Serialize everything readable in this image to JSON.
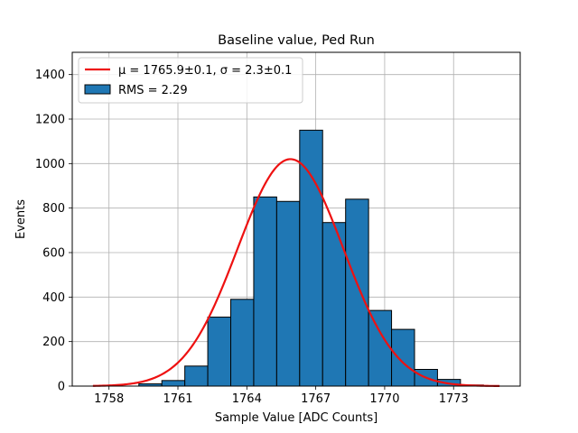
{
  "chart_data": {
    "type": "bar",
    "title": "Baseline value, Ped Run",
    "xlabel": "Sample Value [ADC Counts]",
    "ylabel": "Events",
    "xlim": [
      1756.4,
      1775.9
    ],
    "ylim": [
      0,
      1500
    ],
    "xticks": [
      1758,
      1761,
      1764,
      1767,
      1770,
      1773
    ],
    "yticks": [
      0,
      200,
      400,
      600,
      800,
      1000,
      1200,
      1400
    ],
    "grid": true,
    "legend_position": "top-left",
    "histogram": {
      "name": "RMS = 2.29",
      "color": "#1f77b4",
      "edge_color": "#000000",
      "bins": [
        {
          "lo": 1759.3,
          "hi": 1760.3,
          "count": 10
        },
        {
          "lo": 1760.3,
          "hi": 1761.3,
          "count": 25
        },
        {
          "lo": 1761.3,
          "hi": 1762.3,
          "count": 90
        },
        {
          "lo": 1762.3,
          "hi": 1763.3,
          "count": 310
        },
        {
          "lo": 1763.3,
          "hi": 1764.3,
          "count": 390
        },
        {
          "lo": 1764.3,
          "hi": 1765.3,
          "count": 850
        },
        {
          "lo": 1765.3,
          "hi": 1766.3,
          "count": 830
        },
        {
          "lo": 1766.3,
          "hi": 1767.3,
          "count": 1150
        },
        {
          "lo": 1767.3,
          "hi": 1768.3,
          "count": 735
        },
        {
          "lo": 1768.3,
          "hi": 1769.3,
          "count": 840
        },
        {
          "lo": 1769.3,
          "hi": 1770.3,
          "count": 340
        },
        {
          "lo": 1770.3,
          "hi": 1771.3,
          "count": 255
        },
        {
          "lo": 1771.3,
          "hi": 1772.3,
          "count": 75
        },
        {
          "lo": 1772.3,
          "hi": 1773.3,
          "count": 30
        },
        {
          "lo": 1773.3,
          "hi": 1774.3,
          "count": 5
        }
      ]
    },
    "fit": {
      "name": "μ = 1765.9±0.1, σ = 2.3±0.1",
      "color": "#ee1111",
      "mu": 1765.9,
      "sigma": 2.3,
      "amplitude": 1020,
      "x_range": [
        1757.3,
        1775.0
      ]
    }
  }
}
